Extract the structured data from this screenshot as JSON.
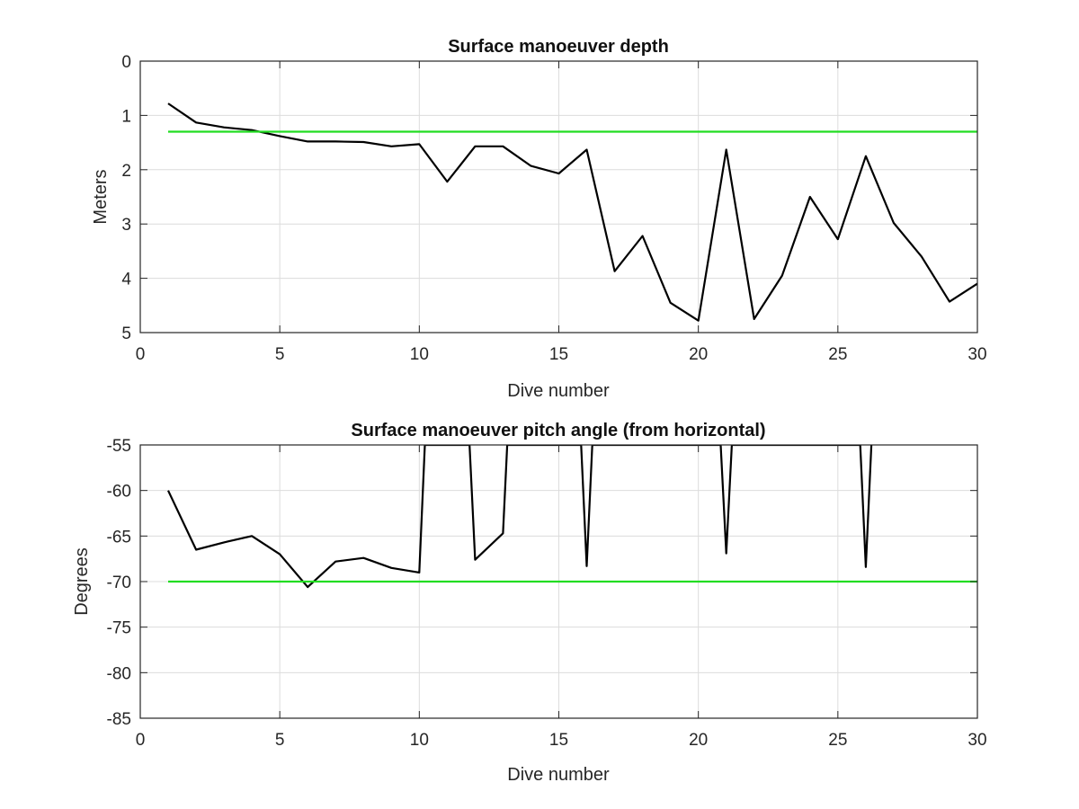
{
  "chart_data": [
    {
      "type": "line",
      "title": "Surface manoeuver depth",
      "xlabel": "Dive number",
      "ylabel": "Meters",
      "xlim": [
        0,
        30
      ],
      "ylim": [
        0,
        5
      ],
      "y_reversed": true,
      "grid": true,
      "xticks": [
        0,
        5,
        10,
        15,
        20,
        25,
        30
      ],
      "yticks": [
        0,
        1,
        2,
        3,
        4,
        5
      ],
      "series": [
        {
          "color": "#000000",
          "x": [
            1,
            2,
            3,
            4,
            5,
            6,
            7,
            8,
            9,
            10,
            11,
            12,
            13,
            14,
            15,
            16,
            17,
            18,
            19,
            20,
            21,
            22,
            23,
            24,
            25,
            26,
            27,
            28,
            29,
            30
          ],
          "y": [
            0.78,
            1.13,
            1.22,
            1.27,
            1.38,
            1.48,
            1.48,
            1.49,
            1.57,
            1.53,
            2.22,
            1.57,
            1.57,
            1.93,
            2.07,
            1.63,
            3.87,
            3.22,
            4.45,
            4.78,
            1.63,
            4.75,
            3.95,
            2.5,
            3.28,
            1.75,
            2.98,
            3.6,
            4.43,
            4.1
          ]
        },
        {
          "color": "#22dd22",
          "x": [
            1,
            30
          ],
          "y": [
            1.3,
            1.3
          ]
        }
      ]
    },
    {
      "type": "line",
      "title": "Surface manoeuver pitch angle (from horizontal)",
      "xlabel": "Dive number",
      "ylabel": "Degrees",
      "xlim": [
        0,
        30
      ],
      "ylim": [
        -85,
        -55
      ],
      "grid": true,
      "xticks": [
        0,
        5,
        10,
        15,
        20,
        25,
        30
      ],
      "yticks": [
        -55,
        -60,
        -65,
        -70,
        -75,
        -80,
        -85
      ],
      "series": [
        {
          "color": "#000000",
          "x": [
            1,
            2,
            3,
            4,
            5,
            6,
            7,
            8,
            9,
            10,
            10.2,
            11.8,
            12,
            13,
            13.15,
            15.8,
            16,
            16.2,
            20.8,
            21,
            21.2,
            25.8,
            26,
            26.2
          ],
          "y": [
            -60,
            -66.5,
            -65.7,
            -65,
            -67,
            -70.6,
            -67.8,
            -67.4,
            -68.5,
            -69,
            -55,
            -55,
            -67.6,
            -64.7,
            -55,
            -55,
            -68.3,
            -55,
            -55,
            -66.9,
            -55,
            -55,
            -68.4,
            -55
          ]
        },
        {
          "color": "#22dd22",
          "x": [
            1,
            30
          ],
          "y": [
            -70,
            -70
          ]
        }
      ]
    }
  ]
}
